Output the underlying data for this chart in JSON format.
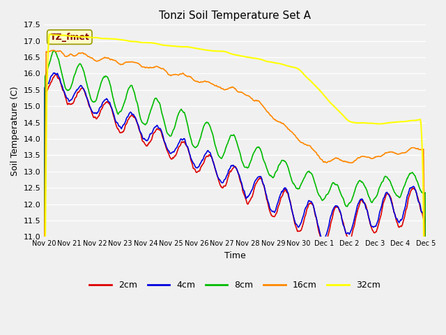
{
  "title": "Tonzi Soil Temperature Set A",
  "xlabel": "Time",
  "ylabel": "Soil Temperature (C)",
  "ylim": [
    11.0,
    17.5
  ],
  "legend_label": "TZ_fmet",
  "legend_box_color": "#ffffcc",
  "legend_text_color": "#800000",
  "legend_box_edge": "#999900",
  "series_colors": {
    "2cm": "#dd0000",
    "4cm": "#0000dd",
    "8cm": "#00bb00",
    "16cm": "#ff8800",
    "32cm": "#ffff00"
  },
  "bg_color": "#f0f0f0",
  "plot_bg_color": "#f0f0f0",
  "grid_color": "#ffffff"
}
